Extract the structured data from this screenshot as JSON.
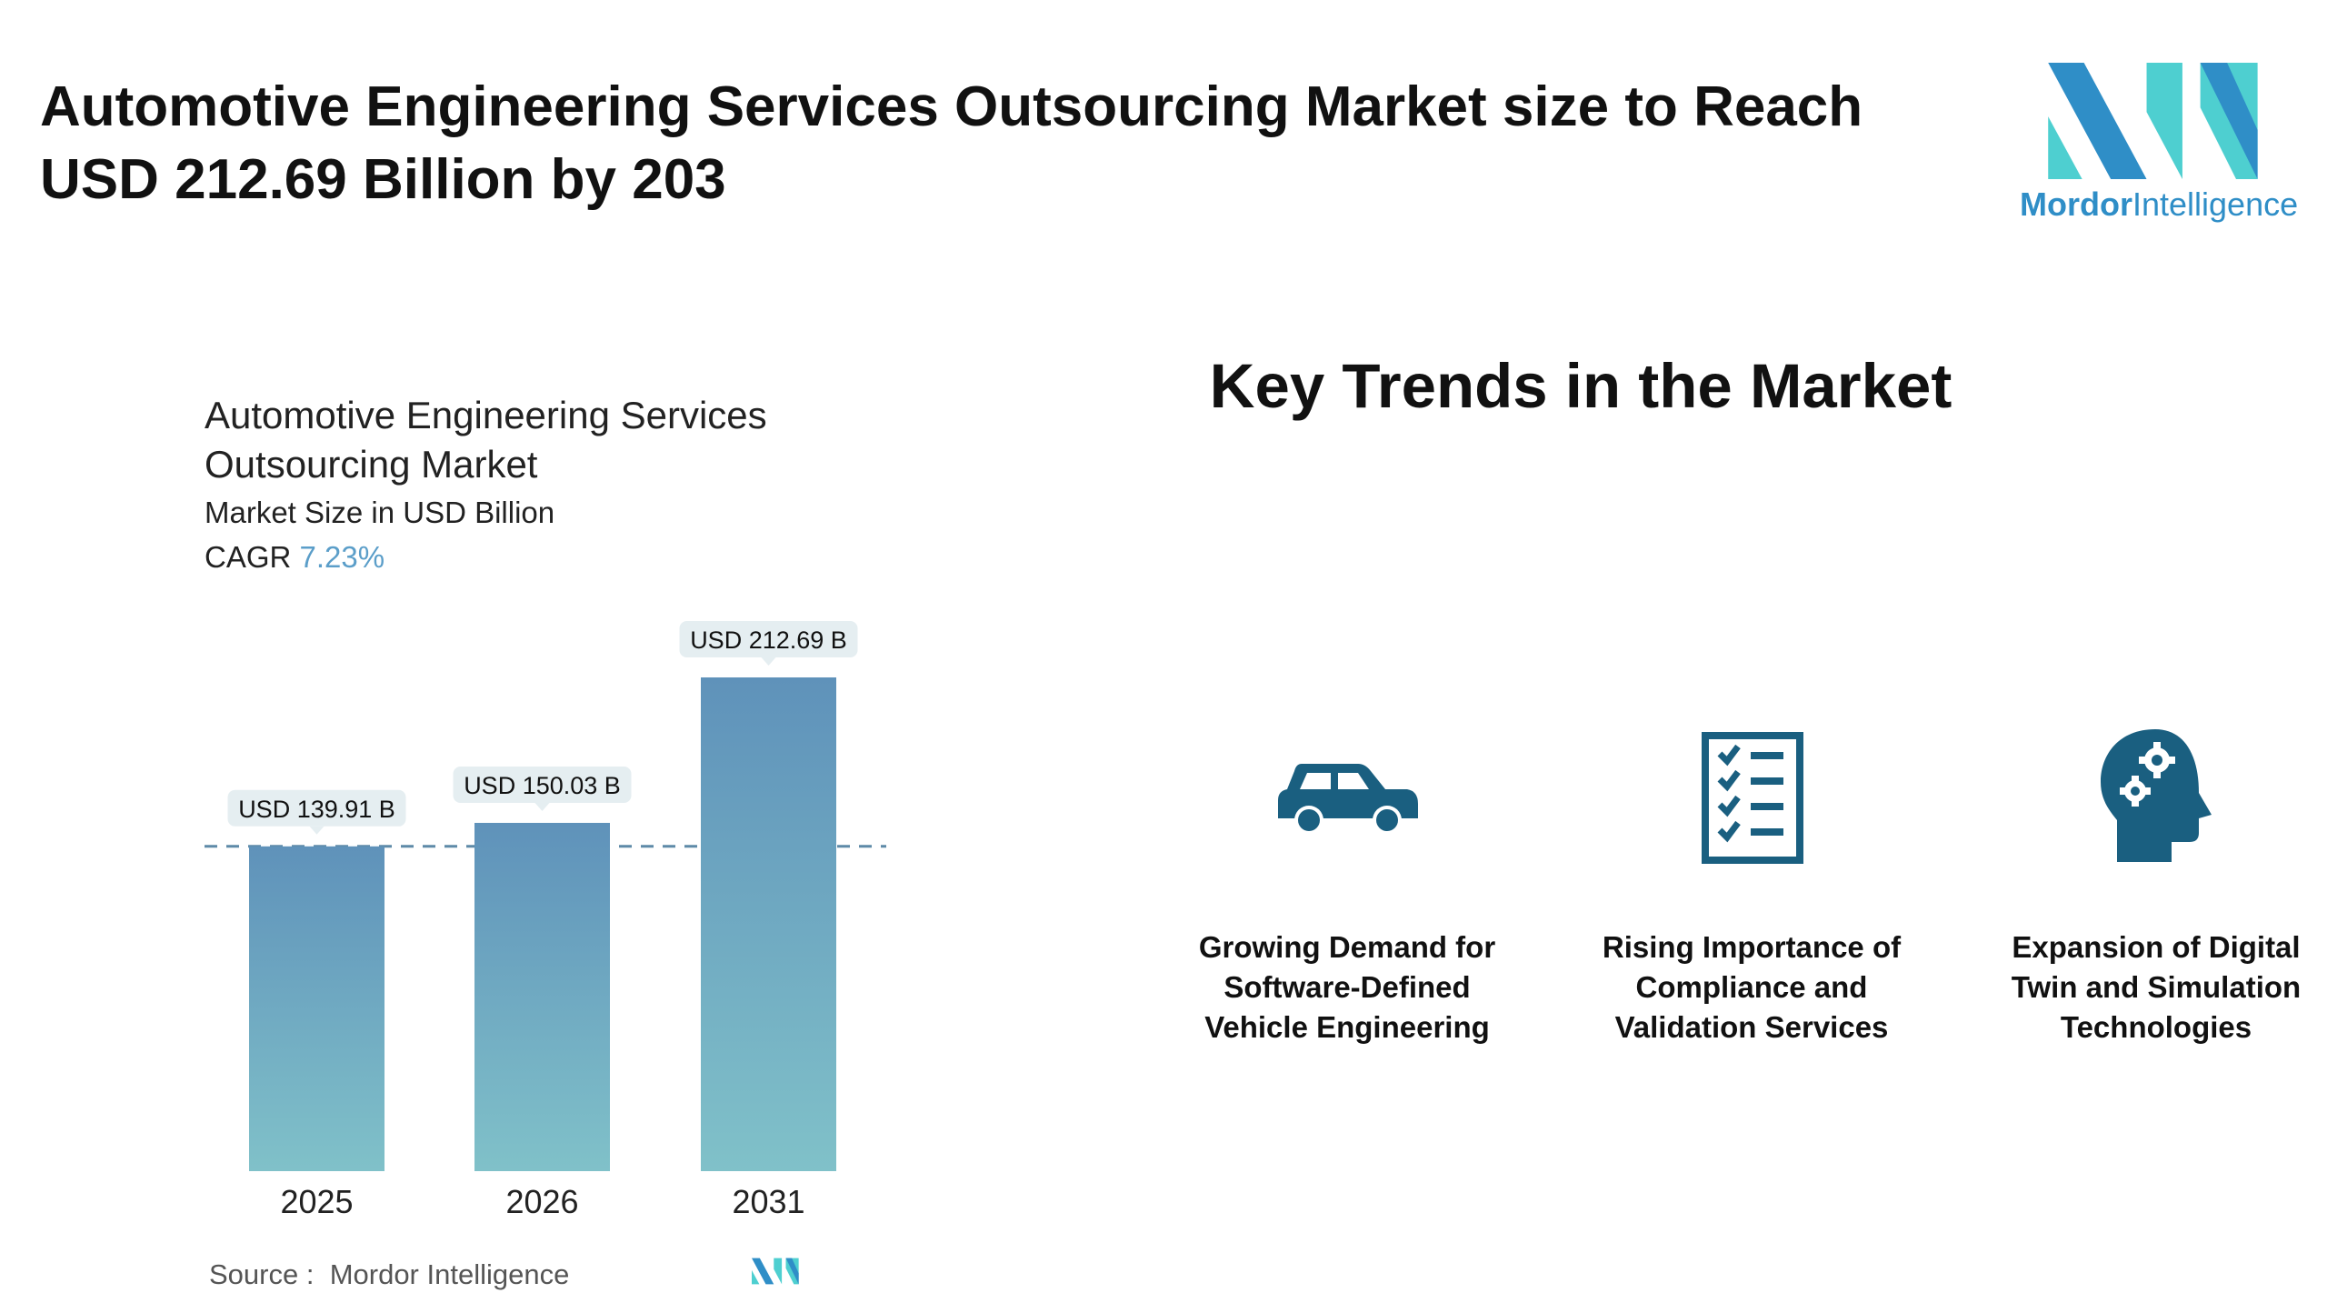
{
  "header": {
    "title": "Automotive Engineering Services Outsourcing Market size to Reach USD 212.69 Billion by 203",
    "logo": {
      "brand_bold": "Mordor",
      "brand_light": "Intelligence",
      "colors": {
        "blue": "#2f8ec7",
        "teal": "#4ecfd0"
      }
    }
  },
  "chart_data": {
    "type": "bar",
    "title": "Automotive Engineering Services Outsourcing Market",
    "subtitle": "Market Size in USD Billion",
    "cagr_label": "CAGR",
    "cagr_value": "7.23%",
    "categories": [
      "2025",
      "2026",
      "2031"
    ],
    "values": [
      139.91,
      150.03,
      212.69
    ],
    "data_labels": [
      "USD 139.91 B",
      "USD 150.03 B",
      "USD 212.69 B"
    ],
    "reference_line": {
      "value": 139.91,
      "style": "dashed"
    },
    "ylim": [
      0,
      212.69
    ],
    "grid": false,
    "colors": {
      "bar_top": "#5f92ba",
      "bar_bottom": "#80c1c9",
      "label_bg": "#e5eef1",
      "dash": "#5e8aa8"
    }
  },
  "source": {
    "label": "Source :",
    "value": "Mordor Intelligence"
  },
  "trends": {
    "heading": "Key Trends in the Market",
    "icon_color": "#1a5f80",
    "items": [
      {
        "icon": "car-icon",
        "lines": [
          "Growing Demand for",
          "Software-Defined",
          "Vehicle Engineering"
        ]
      },
      {
        "icon": "checklist-icon",
        "lines": [
          "Rising Importance of",
          "Compliance and",
          "Validation Services"
        ]
      },
      {
        "icon": "head-gears-icon",
        "lines": [
          "Expansion of Digital",
          "Twin and Simulation",
          "Technologies"
        ]
      }
    ]
  }
}
